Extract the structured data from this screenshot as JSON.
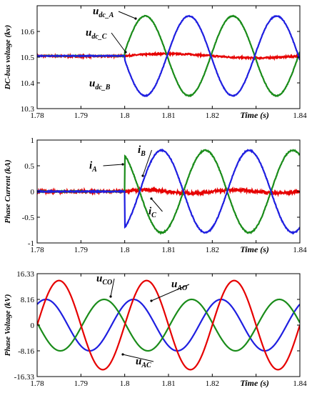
{
  "chart_data": [
    {
      "type": "line",
      "ylabel": "DC-bus voltage (kv)",
      "xlabel": "Time (s)",
      "xlim": [
        1.78,
        1.84
      ],
      "ylim": [
        10.3,
        10.7
      ],
      "xticks": [
        "1.78",
        "1.79",
        "1.8",
        "1.81",
        "1.82",
        "1.83",
        "1.84"
      ],
      "yticks": [
        "10.3",
        "10.4",
        "10.5",
        "10.6"
      ],
      "colors": {
        "A": "#1a8c1a",
        "B": "#1f1fe0",
        "C": "#e60000"
      },
      "series": [
        {
          "key": "A",
          "note": "u_dc_A: flat 10.505 until t=1.80, then sinusoid ~50 Hz, amplitude ~0.15 kV, first peak 10.66 at t≈1.803"
        },
        {
          "key": "B",
          "note": "u_dc_B: flat 10.505 until t=1.80, then sinusoid in antiphase with A, first trough 10.35 at t≈1.803"
        },
        {
          "key": "C",
          "note": "u_dc_C: remains ~10.505 with small ripple (±0.008 kV)"
        }
      ],
      "labels": [
        {
          "main": "u",
          "sub": "dc_A"
        },
        {
          "main": "u",
          "sub": "dc_C"
        },
        {
          "main": "u",
          "sub": "dc_B"
        }
      ]
    },
    {
      "type": "line",
      "ylabel": "Phase Current (kA)",
      "xlabel": "Time (s)",
      "xlim": [
        1.78,
        1.84
      ],
      "ylim": [
        -1,
        1
      ],
      "xticks": [
        "1.78",
        "1.79",
        "1.8",
        "1.81",
        "1.82",
        "1.83",
        "1.84"
      ],
      "yticks": [
        "-1",
        "-0.5",
        "0",
        "0.5",
        "1"
      ],
      "colors": {
        "A": "#1a8c1a",
        "B": "#1f1fe0",
        "C": "#e60000"
      },
      "series": [
        {
          "key": "A",
          "note": "i_A: 0 until t=1.80, jumps to 0.7 kA, then sinusoid amplitude 0.8 kA, trough -0.8 at t≈1.808"
        },
        {
          "key": "B",
          "note": "i_B: 0 until t=1.80, jumps to -0.6 kA, then sinusoid amplitude 0.8 kA in antiphase with A, peak 0.8 at t≈1.808"
        },
        {
          "key": "C",
          "note": "i_C: noisy around 0 (±0.03 kA) throughout"
        }
      ],
      "labels": [
        {
          "main": "i",
          "sub": "A"
        },
        {
          "main": "i",
          "sub": "B"
        },
        {
          "main": "i",
          "sub": "C"
        }
      ]
    },
    {
      "type": "line",
      "ylabel": "Phase Voltage (kV)",
      "xlabel": "Time (s)",
      "xlim": [
        1.78,
        1.84
      ],
      "ylim": [
        -16.33,
        16.33
      ],
      "xticks": [
        "1.78",
        "1.79",
        "1.8",
        "1.81",
        "1.82",
        "1.83",
        "1.84"
      ],
      "yticks": [
        "-16.33",
        "-8.16",
        "0",
        "8.16",
        "16.33"
      ],
      "colors": {
        "AO": "#1f1fe0",
        "CO": "#1a8c1a",
        "AC": "#e60000"
      },
      "series": [
        {
          "key": "AO",
          "note": "u_AO: 50 Hz sinusoid, amplitude 8.16 kV, peak at t≈1.782"
        },
        {
          "key": "CO",
          "note": "u_CO: 50 Hz sinusoid, amplitude 8.16 kV, peak at t≈1.7953"
        },
        {
          "key": "AC",
          "note": "u_AC: 50 Hz sinusoid, amplitude 14.14 kV, peak at t≈1.785"
        }
      ],
      "labels": [
        {
          "main": "u",
          "sub": "CO"
        },
        {
          "main": "u",
          "sub": "AO"
        },
        {
          "main": "u",
          "sub": "AC"
        }
      ]
    }
  ]
}
